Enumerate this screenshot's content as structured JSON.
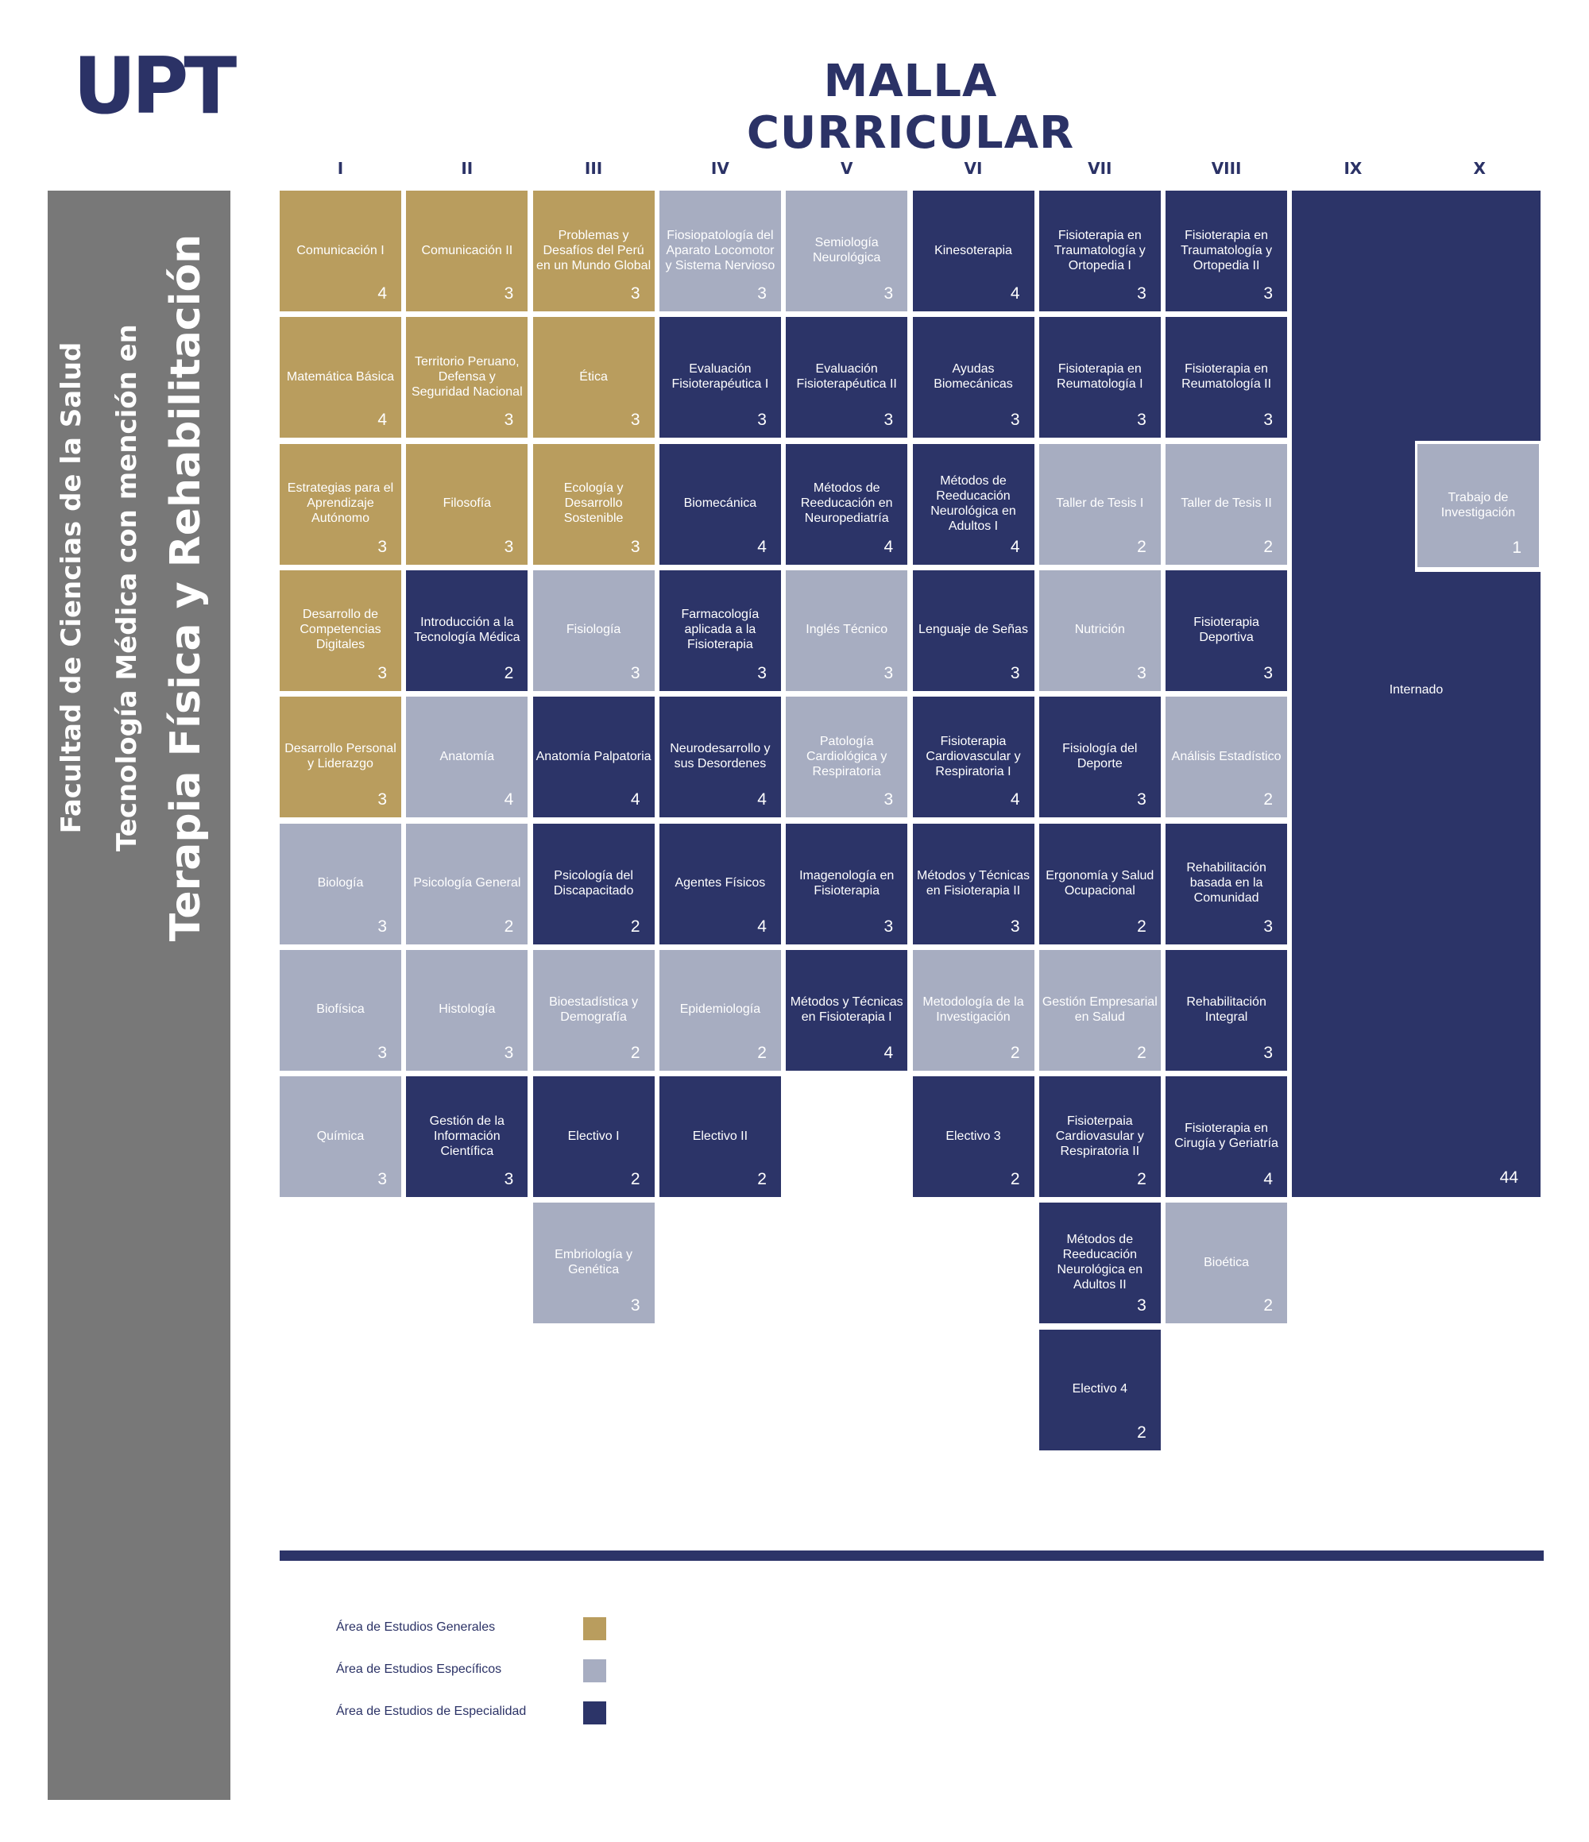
{
  "logo": "UPT",
  "title": "MALLA CURRICULAR",
  "sidebar": {
    "line1": "Facultad de Ciencias de la Salud",
    "line2": "Tecnología Médica con mención en",
    "line3": "Terapia Física y Rehabilitación"
  },
  "colors": {
    "general": "#b99d5e",
    "especifico": "#a7adc1",
    "especialidad": "#2c3468"
  },
  "semesters": [
    "I",
    "II",
    "III",
    "IV",
    "V",
    "VI",
    "VII",
    "VIII",
    "IX",
    "X"
  ],
  "courses": [
    {
      "name": "Comunicación I",
      "credits": "4",
      "area": "gen",
      "col": 0,
      "row": 0
    },
    {
      "name": "Matemática Básica",
      "credits": "4",
      "area": "gen",
      "col": 0,
      "row": 1
    },
    {
      "name": "Estrategias para el Aprendizaje Autónomo",
      "credits": "3",
      "area": "gen",
      "col": 0,
      "row": 2
    },
    {
      "name": "Desarrollo de Competencias Digitales",
      "credits": "3",
      "area": "gen",
      "col": 0,
      "row": 3
    },
    {
      "name": "Desarrollo Personal y Liderazgo",
      "credits": "3",
      "area": "gen",
      "col": 0,
      "row": 4
    },
    {
      "name": "Biología",
      "credits": "3",
      "area": "esp",
      "col": 0,
      "row": 5
    },
    {
      "name": "Biofísica",
      "credits": "3",
      "area": "esp",
      "col": 0,
      "row": 6
    },
    {
      "name": "Química",
      "credits": "3",
      "area": "esp",
      "col": 0,
      "row": 7
    },
    {
      "name": "Comunicación II",
      "credits": "3",
      "area": "gen",
      "col": 1,
      "row": 0
    },
    {
      "name": "Territorio Peruano, Defensa y Seguridad Nacional",
      "credits": "3",
      "area": "gen",
      "col": 1,
      "row": 1
    },
    {
      "name": "Filosofía",
      "credits": "3",
      "area": "gen",
      "col": 1,
      "row": 2
    },
    {
      "name": "Introducción a la Tecnología Médica",
      "credits": "2",
      "area": "spe",
      "col": 1,
      "row": 3
    },
    {
      "name": "Anatomía",
      "credits": "4",
      "area": "esp",
      "col": 1,
      "row": 4
    },
    {
      "name": "Psicología General",
      "credits": "2",
      "area": "esp",
      "col": 1,
      "row": 5
    },
    {
      "name": "Histología",
      "credits": "3",
      "area": "esp",
      "col": 1,
      "row": 6
    },
    {
      "name": "Gestión de la Información Científica",
      "credits": "3",
      "area": "spe",
      "col": 1,
      "row": 7
    },
    {
      "name": "Problemas y Desafíos del Perú en un Mundo Global",
      "credits": "3",
      "area": "gen",
      "col": 2,
      "row": 0
    },
    {
      "name": "Ética",
      "credits": "3",
      "area": "gen",
      "col": 2,
      "row": 1
    },
    {
      "name": "Ecología y Desarrollo Sostenible",
      "credits": "3",
      "area": "gen",
      "col": 2,
      "row": 2
    },
    {
      "name": "Fisiología",
      "credits": "3",
      "area": "esp",
      "col": 2,
      "row": 3
    },
    {
      "name": "Anatomía Palpatoria",
      "credits": "4",
      "area": "spe",
      "col": 2,
      "row": 4
    },
    {
      "name": "Psicología del Discapacitado",
      "credits": "2",
      "area": "spe",
      "col": 2,
      "row": 5
    },
    {
      "name": "Bioestadística y Demografía",
      "credits": "2",
      "area": "esp",
      "col": 2,
      "row": 6
    },
    {
      "name": "Electivo I",
      "credits": "2",
      "area": "spe",
      "col": 2,
      "row": 7
    },
    {
      "name": "Embriología y Genética",
      "credits": "3",
      "area": "esp",
      "col": 2,
      "row": 8
    },
    {
      "name": "Fiosiopatología del Aparato Locomotor y Sistema Nervioso",
      "credits": "3",
      "area": "esp",
      "col": 3,
      "row": 0
    },
    {
      "name": "Evaluación Fisioterapéutica I",
      "credits": "3",
      "area": "spe",
      "col": 3,
      "row": 1
    },
    {
      "name": "Biomecánica",
      "credits": "4",
      "area": "spe",
      "col": 3,
      "row": 2
    },
    {
      "name": "Farmacología aplicada a la Fisioterapia",
      "credits": "3",
      "area": "spe",
      "col": 3,
      "row": 3
    },
    {
      "name": "Neurodesarrollo y sus Desordenes",
      "credits": "4",
      "area": "spe",
      "col": 3,
      "row": 4
    },
    {
      "name": "Agentes Físicos",
      "credits": "4",
      "area": "spe",
      "col": 3,
      "row": 5
    },
    {
      "name": "Epidemiología",
      "credits": "2",
      "area": "esp",
      "col": 3,
      "row": 6
    },
    {
      "name": "Electivo II",
      "credits": "2",
      "area": "spe",
      "col": 3,
      "row": 7
    },
    {
      "name": "Semiología Neurológica",
      "credits": "3",
      "area": "esp",
      "col": 4,
      "row": 0
    },
    {
      "name": "Evaluación Fisioterapéutica II",
      "credits": "3",
      "area": "spe",
      "col": 4,
      "row": 1
    },
    {
      "name": "Métodos de Reeducación en Neuropediatría",
      "credits": "4",
      "area": "spe",
      "col": 4,
      "row": 2
    },
    {
      "name": "Inglés Técnico",
      "credits": "3",
      "area": "esp",
      "col": 4,
      "row": 3
    },
    {
      "name": "Patología Cardiológica y Respiratoria",
      "credits": "3",
      "area": "esp",
      "col": 4,
      "row": 4
    },
    {
      "name": "Imagenología en Fisioterapia",
      "credits": "3",
      "area": "spe",
      "col": 4,
      "row": 5
    },
    {
      "name": "Métodos y Técnicas en Fisioterapia I",
      "credits": "4",
      "area": "spe",
      "col": 4,
      "row": 6
    },
    {
      "name": "Kinesoterapia",
      "credits": "4",
      "area": "spe",
      "col": 5,
      "row": 0
    },
    {
      "name": "Ayudas Biomecánicas",
      "credits": "3",
      "area": "spe",
      "col": 5,
      "row": 1
    },
    {
      "name": "Métodos de Reeducación Neurológica en Adultos I",
      "credits": "4",
      "area": "spe",
      "col": 5,
      "row": 2
    },
    {
      "name": "Lenguaje de Señas",
      "credits": "3",
      "area": "spe",
      "col": 5,
      "row": 3
    },
    {
      "name": "Fisioterapia Cardiovascular y Respiratoria I",
      "credits": "4",
      "area": "spe",
      "col": 5,
      "row": 4
    },
    {
      "name": "Métodos y Técnicas en Fisioterapia II",
      "credits": "3",
      "area": "spe",
      "col": 5,
      "row": 5
    },
    {
      "name": "Metodología de la Investigación",
      "credits": "2",
      "area": "esp",
      "col": 5,
      "row": 6
    },
    {
      "name": "Electivo 3",
      "credits": "2",
      "area": "spe",
      "col": 5,
      "row": 7
    },
    {
      "name": "Fisioterapia en Traumatología y Ortopedia I",
      "credits": "3",
      "area": "spe",
      "col": 6,
      "row": 0
    },
    {
      "name": "Fisioterapia en Reumatología I",
      "credits": "3",
      "area": "spe",
      "col": 6,
      "row": 1
    },
    {
      "name": "Taller de Tesis I",
      "credits": "2",
      "area": "esp",
      "col": 6,
      "row": 2
    },
    {
      "name": "Nutrición",
      "credits": "3",
      "area": "esp",
      "col": 6,
      "row": 3
    },
    {
      "name": "Fisiología del Deporte",
      "credits": "3",
      "area": "spe",
      "col": 6,
      "row": 4
    },
    {
      "name": "Ergonomía y Salud Ocupacional",
      "credits": "2",
      "area": "spe",
      "col": 6,
      "row": 5
    },
    {
      "name": "Gestión Empresarial en Salud",
      "credits": "2",
      "area": "esp",
      "col": 6,
      "row": 6
    },
    {
      "name": "Fisioterpaia Cardiovasular y Respiratoria II",
      "credits": "2",
      "area": "spe",
      "col": 6,
      "row": 7
    },
    {
      "name": "Métodos de Reeducación Neurológica en Adultos II",
      "credits": "3",
      "area": "spe",
      "col": 6,
      "row": 8
    },
    {
      "name": "Electivo 4",
      "credits": "2",
      "area": "spe",
      "col": 6,
      "row": 9
    },
    {
      "name": "Fisioterapia en Traumatología y Ortopedia II",
      "credits": "3",
      "area": "spe",
      "col": 7,
      "row": 0
    },
    {
      "name": "Fisioterapia en Reumatología II",
      "credits": "3",
      "area": "spe",
      "col": 7,
      "row": 1
    },
    {
      "name": "Taller de Tesis II",
      "credits": "2",
      "area": "esp",
      "col": 7,
      "row": 2
    },
    {
      "name": "Fisioterapia Deportiva",
      "credits": "3",
      "area": "spe",
      "col": 7,
      "row": 3
    },
    {
      "name": "Análisis Estadístico",
      "credits": "2",
      "area": "esp",
      "col": 7,
      "row": 4
    },
    {
      "name": "Rehabilitación basada en la Comunidad",
      "credits": "3",
      "area": "spe",
      "col": 7,
      "row": 5
    },
    {
      "name": "Rehabilitación Integral",
      "credits": "3",
      "area": "spe",
      "col": 7,
      "row": 6
    },
    {
      "name": "Fisioterapia en Cirugía y Geriatría",
      "credits": "4",
      "area": "spe",
      "col": 7,
      "row": 7
    },
    {
      "name": "Bioética",
      "credits": "2",
      "area": "esp",
      "col": 7,
      "row": 8
    }
  ],
  "internado": {
    "name": "Internado",
    "credits": "44"
  },
  "trabajo": {
    "name": "Trabajo de Investigación",
    "credits": "1"
  },
  "legend": [
    {
      "label": "Área de Estudios Generales",
      "area": "gen"
    },
    {
      "label": "Área de Estudios Específicos",
      "area": "esp"
    },
    {
      "label": "Área de Estudios de Especialidad",
      "area": "spe"
    }
  ]
}
